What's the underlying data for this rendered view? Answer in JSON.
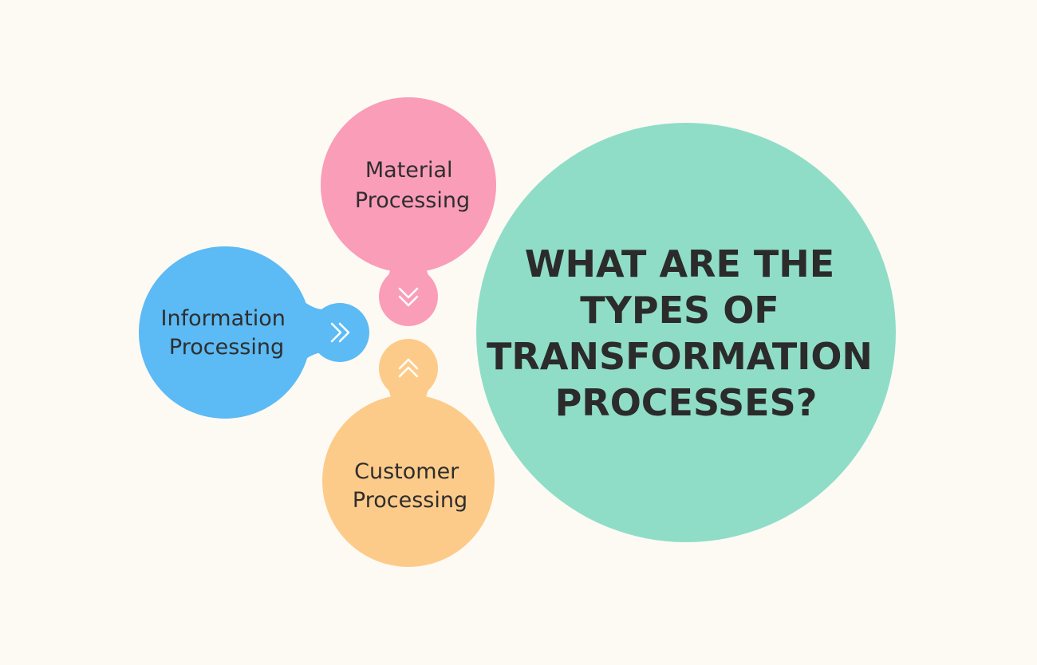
{
  "title": {
    "lines": [
      "WHAT ARE THE",
      "TYPES OF",
      "TRANSFORMATION",
      "PROCESSES?"
    ]
  },
  "bubbles": {
    "material": {
      "lines": [
        "Material",
        "Processing"
      ]
    },
    "information": {
      "lines": [
        "Information",
        "Processing"
      ]
    },
    "customer": {
      "lines": [
        "Customer",
        "Processing"
      ]
    }
  },
  "icons": {
    "material": "double-chevron-down-icon",
    "information": "double-chevron-right-icon",
    "customer": "double-chevron-up-icon"
  },
  "colors": {
    "background": "#fdfaf4",
    "main": "#8fddc7",
    "material": "#fa9db8",
    "information": "#5cbaf5",
    "customer": "#fdcb89",
    "text": "#2e2e2e"
  }
}
